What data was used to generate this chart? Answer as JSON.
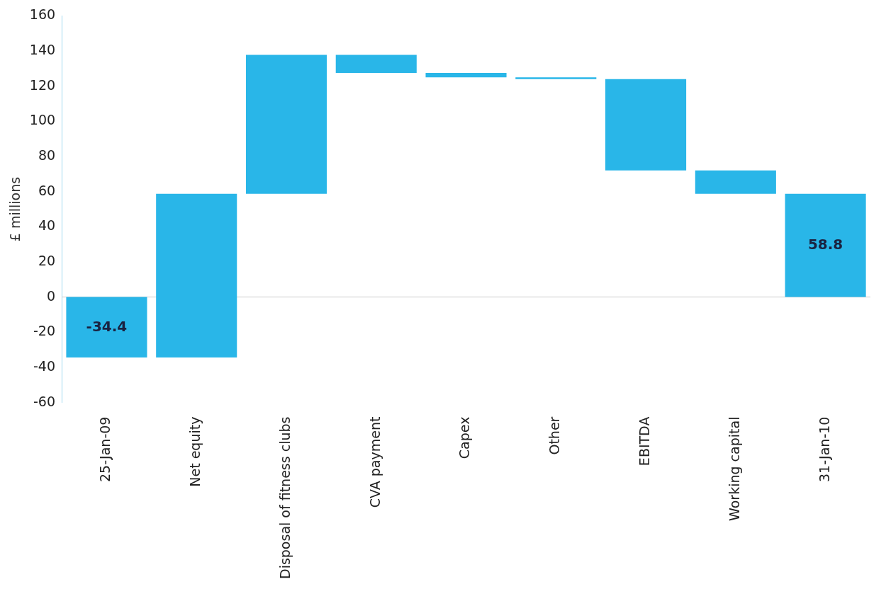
{
  "chart_data": {
    "type": "bar",
    "ylabel": "£ millions",
    "categories": [
      "25-Jan-09",
      "Net equity",
      "Disposal of fitness clubs",
      "CVA payment",
      "Capex",
      "Other",
      "EBITDA",
      "Working capital",
      "31-Jan-10"
    ],
    "base": [
      0,
      -34.4,
      58.8,
      137.8,
      127.5,
      125,
      124,
      72,
      0
    ],
    "values": [
      -34.4,
      93.2,
      79,
      -10.3,
      -2.5,
      -1,
      -52,
      -13.2,
      58.8
    ],
    "value_labels": [
      "-34.4",
      null,
      null,
      null,
      null,
      null,
      null,
      null,
      "58.8"
    ],
    "color": "#29b6e8",
    "ylim": [
      -60,
      160
    ],
    "yticks": [
      -60,
      -40,
      -20,
      0,
      20,
      40,
      60,
      80,
      100,
      120,
      140,
      160
    ],
    "ref_lines": [
      {
        "axis": "y",
        "value": 0,
        "color": "#cccccc"
      }
    ],
    "grid": false,
    "legend": false
  }
}
